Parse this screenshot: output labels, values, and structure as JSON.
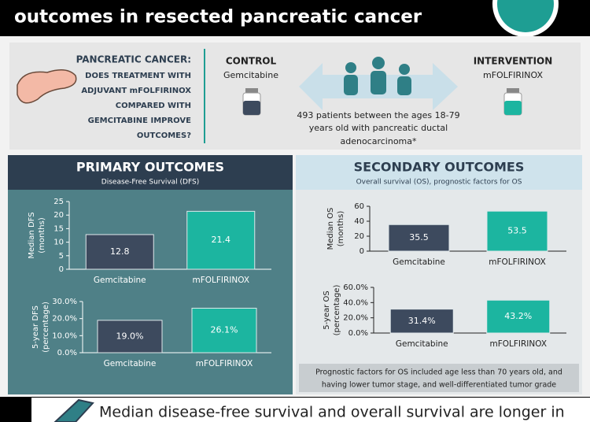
{
  "header": {
    "title": "outcomes in resected pancreatic cancer"
  },
  "question": {
    "lines": [
      "PANCREATIC CANCER:",
      "DOES TREATMENT WITH",
      "ADJUVANT mFOLFIRINOX",
      "COMPARED WITH",
      "GEMCITABINE IMPROVE",
      "OUTCOMES?"
    ]
  },
  "control": {
    "label": "CONTROL",
    "drug": "Gemcitabine"
  },
  "intervention": {
    "label": "INTERVENTION",
    "drug": "mFOLFIRINOX"
  },
  "population": {
    "lines": [
      "493 patients between the ages 18-79",
      "years old with pancreatic ductal",
      "adenocarcinoma*"
    ]
  },
  "primary": {
    "title": "PRIMARY OUTCOMES",
    "subtitle": "Disease-Free Survival (DFS)"
  },
  "secondary": {
    "title": "SECONDARY OUTCOMES",
    "subtitle": "Overall survival (OS), prognostic factors for OS",
    "note": [
      "Prognostic factors for OS included age less than 70 years old, and",
      "having lower tumor stage, and well-differentiated tumor grade"
    ]
  },
  "footer": {
    "text": "Median disease-free survival and overall survival are longer in"
  },
  "chart_data": [
    {
      "type": "bar",
      "ylabel": [
        "Median DFS",
        "(months)"
      ],
      "categories": [
        "Gemcitabine",
        "mFOLFIRINOX"
      ],
      "values": [
        12.8,
        21.4
      ],
      "colors": [
        "#3d4a5e",
        "#1cb5a0"
      ],
      "ylim": [
        0,
        25
      ],
      "yticks": [
        0,
        5,
        10,
        15,
        20,
        25
      ]
    },
    {
      "type": "bar",
      "ylabel": [
        "5-year DFS",
        "(percentage)"
      ],
      "categories": [
        "Gemcitabine",
        "mFOLFIRINOX"
      ],
      "values": [
        19.0,
        26.1
      ],
      "value_labels": [
        "19.0%",
        "26.1%"
      ],
      "colors": [
        "#3d4a5e",
        "#1cb5a0"
      ],
      "ylim": [
        0,
        30
      ],
      "yticks": [
        {
          "value": 0,
          "label": "0.0%"
        },
        {
          "value": 10,
          "label": "10.0%"
        },
        {
          "value": 20,
          "label": "20.0%"
        },
        {
          "value": 30,
          "label": "30.0%"
        }
      ]
    },
    {
      "type": "bar",
      "ylabel": [
        "Median OS",
        "(months)"
      ],
      "categories": [
        "Gemcitabine",
        "mFOLFIRINOX"
      ],
      "values": [
        35.5,
        53.5
      ],
      "colors": [
        "#3d4a5e",
        "#1cb5a0"
      ],
      "ylim": [
        0,
        60
      ],
      "yticks": [
        0,
        20,
        40,
        60
      ]
    },
    {
      "type": "bar",
      "ylabel": [
        "5-year OS",
        "(percentage)"
      ],
      "categories": [
        "Gemcitabine",
        "mFOLFIRINOX"
      ],
      "values": [
        31.4,
        43.2
      ],
      "value_labels": [
        "31.4%",
        "43.2%"
      ],
      "colors": [
        "#3d4a5e",
        "#1cb5a0"
      ],
      "ylim": [
        0,
        60
      ],
      "yticks": [
        {
          "value": 0,
          "label": "0.0%"
        },
        {
          "value": 20,
          "label": "20.0%"
        },
        {
          "value": 40,
          "label": "40.0%"
        },
        {
          "value": 60,
          "label": "60.0%"
        }
      ]
    }
  ]
}
